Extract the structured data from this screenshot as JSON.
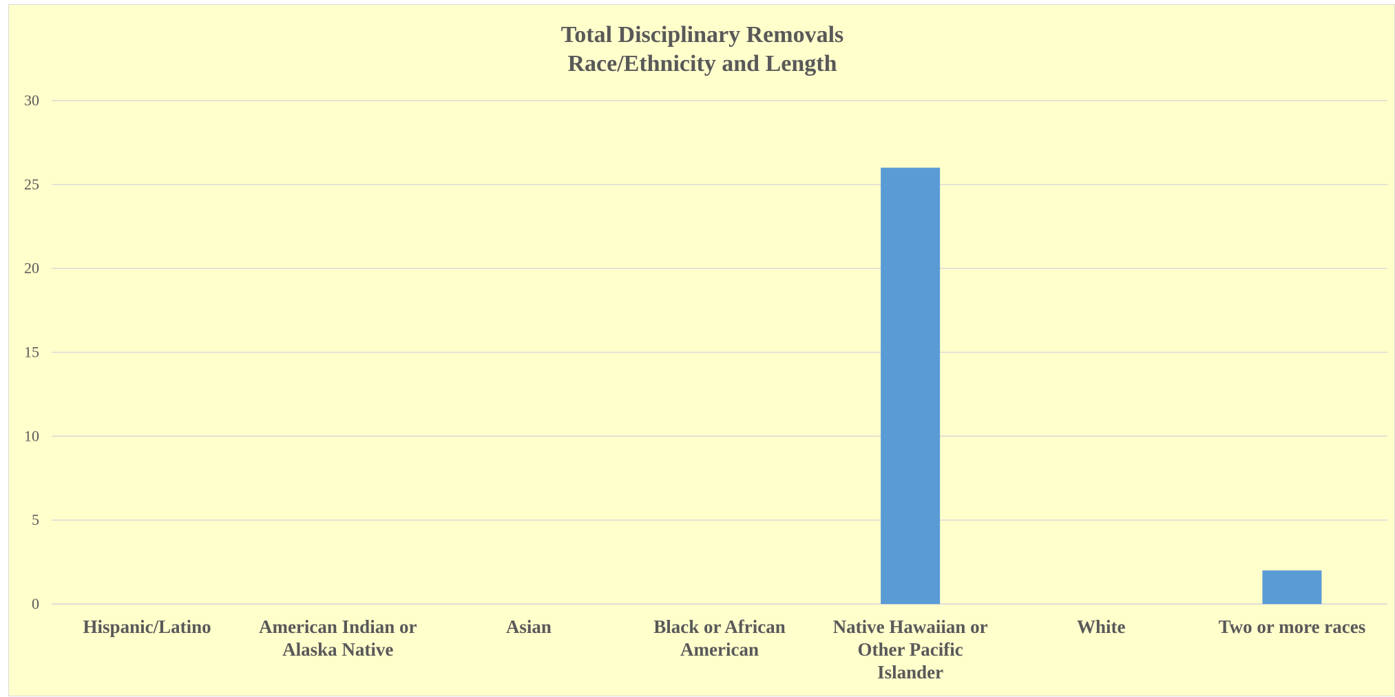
{
  "chart_data": {
    "type": "bar",
    "title": "Total Disciplinary Removals",
    "subtitle": "Race/Ethnicity and Length",
    "categories": [
      "Hispanic/Latino",
      "American Indian or Alaska Native",
      "Asian",
      "Black or African American",
      "Native Hawaiian or Other Pacific Islander",
      "White",
      "Two or more races"
    ],
    "category_label_lines": [
      [
        "Hispanic/Latino"
      ],
      [
        "American Indian or",
        "Alaska Native"
      ],
      [
        "Asian"
      ],
      [
        "Black or African",
        "American"
      ],
      [
        "Native Hawaiian or",
        "Other Pacific",
        "Islander"
      ],
      [
        "White"
      ],
      [
        "Two or more races"
      ]
    ],
    "values": [
      0,
      0,
      0,
      0,
      26,
      0,
      2
    ],
    "ylim": [
      0,
      30
    ],
    "yticks": [
      0,
      5,
      10,
      15,
      20,
      25,
      30
    ],
    "xlabel": "",
    "ylabel": "",
    "grid": true,
    "legend": "none",
    "colors": {
      "bar": "#5b9bd5",
      "background": "#ffffcc",
      "grid": "#d9d9d9",
      "text": "#595959"
    }
  }
}
